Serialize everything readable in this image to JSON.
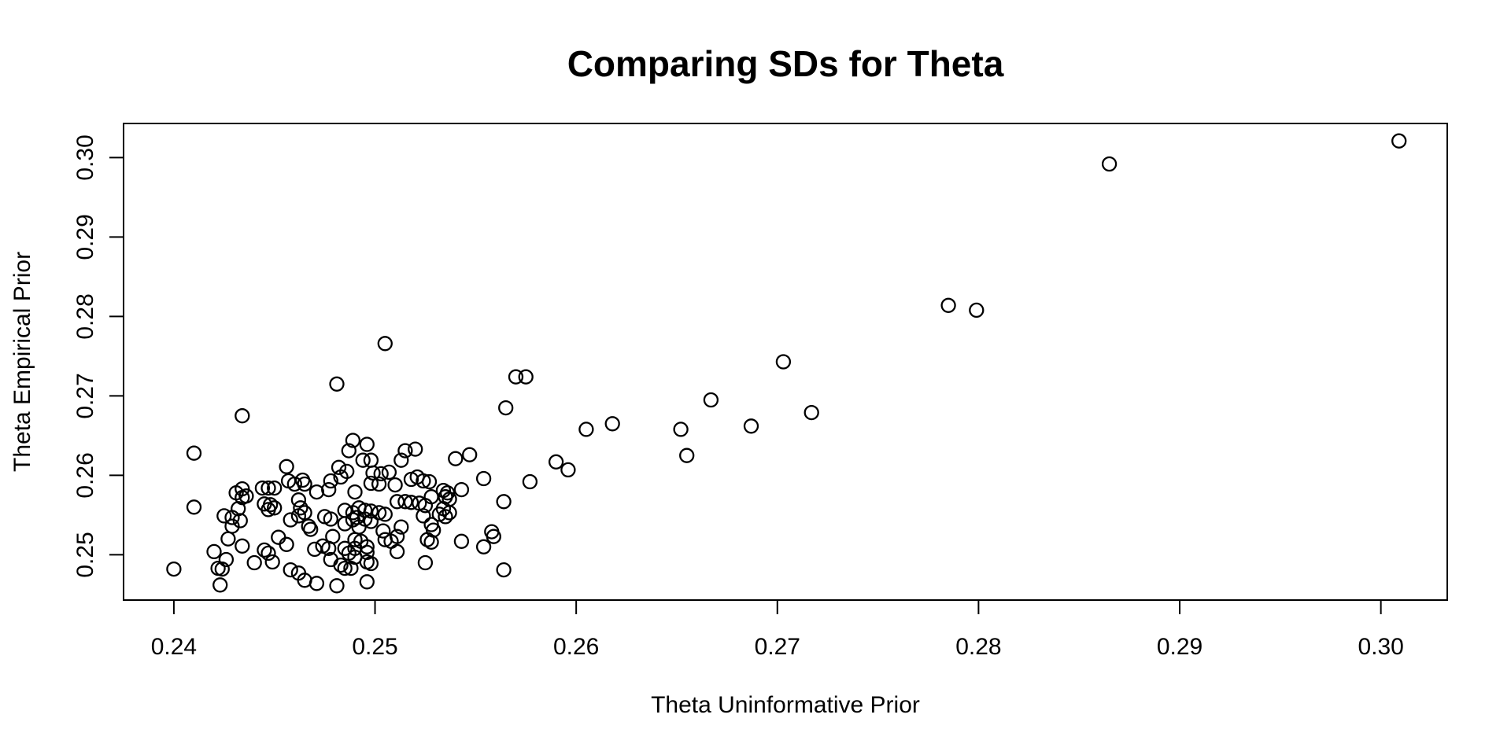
{
  "figure": {
    "background_color": "#ffffff",
    "foreground_color": "#000000"
  },
  "chart_data": {
    "type": "scatter",
    "title": "Comparing SDs for Theta",
    "xlabel": "Theta Uninformative Prior",
    "ylabel": "Theta Empirical Prior",
    "grid": false,
    "legend": "none",
    "xlim": [
      0.2375,
      0.3033
    ],
    "ylim": [
      0.2443,
      0.3043
    ],
    "x_ticks": {
      "values": [
        0.24,
        0.25,
        0.26,
        0.27,
        0.28,
        0.29,
        0.3
      ],
      "labels": [
        "0.24",
        "0.25",
        "0.26",
        "0.27",
        "0.28",
        "0.29",
        "0.30"
      ]
    },
    "y_ticks": {
      "values": [
        0.25,
        0.26,
        0.27,
        0.28,
        0.29,
        0.3
      ],
      "labels": [
        "0.25",
        "0.26",
        "0.27",
        "0.28",
        "0.29",
        "0.30"
      ]
    },
    "marker": {
      "shape": "open-circle",
      "color": "#000000",
      "radius_px": 8.5,
      "stroke_px": 2.3
    },
    "points": [
      [
        0.24,
        0.2482
      ],
      [
        0.241,
        0.2628
      ],
      [
        0.241,
        0.256
      ],
      [
        0.242,
        0.2504
      ],
      [
        0.2422,
        0.2483
      ],
      [
        0.2423,
        0.2462
      ],
      [
        0.2424,
        0.2482
      ],
      [
        0.2425,
        0.2549
      ],
      [
        0.2426,
        0.2494
      ],
      [
        0.2427,
        0.252
      ],
      [
        0.2429,
        0.2547
      ],
      [
        0.2429,
        0.2536
      ],
      [
        0.2431,
        0.2578
      ],
      [
        0.2432,
        0.2558
      ],
      [
        0.2433,
        0.2543
      ],
      [
        0.2434,
        0.2583
      ],
      [
        0.2434,
        0.2572
      ],
      [
        0.2434,
        0.2511
      ],
      [
        0.2436,
        0.2574
      ],
      [
        0.2434,
        0.2675
      ],
      [
        0.244,
        0.249
      ],
      [
        0.2444,
        0.2584
      ],
      [
        0.2447,
        0.2584
      ],
      [
        0.245,
        0.2584
      ],
      [
        0.2445,
        0.2564
      ],
      [
        0.2448,
        0.2563
      ],
      [
        0.2447,
        0.2557
      ],
      [
        0.245,
        0.2559
      ],
      [
        0.2445,
        0.2506
      ],
      [
        0.2447,
        0.2502
      ],
      [
        0.2449,
        0.2491
      ],
      [
        0.2452,
        0.2522
      ],
      [
        0.2456,
        0.2513
      ],
      [
        0.2456,
        0.2611
      ],
      [
        0.2457,
        0.2593
      ],
      [
        0.246,
        0.2589
      ],
      [
        0.2464,
        0.2594
      ],
      [
        0.2465,
        0.2589
      ],
      [
        0.2462,
        0.2569
      ],
      [
        0.2463,
        0.2559
      ],
      [
        0.2465,
        0.2553
      ],
      [
        0.2458,
        0.2544
      ],
      [
        0.2462,
        0.2549
      ],
      [
        0.2467,
        0.2536
      ],
      [
        0.2468,
        0.2532
      ],
      [
        0.247,
        0.2507
      ],
      [
        0.2471,
        0.2579
      ],
      [
        0.2471,
        0.2464
      ],
      [
        0.2474,
        0.2511
      ],
      [
        0.2475,
        0.2548
      ],
      [
        0.2477,
        0.2508
      ],
      [
        0.2478,
        0.2593
      ],
      [
        0.2477,
        0.2582
      ],
      [
        0.2478,
        0.2545
      ],
      [
        0.2479,
        0.2523
      ],
      [
        0.2478,
        0.2494
      ],
      [
        0.2458,
        0.2481
      ],
      [
        0.2462,
        0.2477
      ],
      [
        0.2465,
        0.2468
      ],
      [
        0.2481,
        0.2461
      ],
      [
        0.2481,
        0.2715
      ],
      [
        0.2482,
        0.261
      ],
      [
        0.2483,
        0.2487
      ],
      [
        0.2483,
        0.2598
      ],
      [
        0.2485,
        0.2483
      ],
      [
        0.2485,
        0.2508
      ],
      [
        0.2485,
        0.2556
      ],
      [
        0.2485,
        0.2539
      ],
      [
        0.2486,
        0.2605
      ],
      [
        0.2487,
        0.2631
      ],
      [
        0.2487,
        0.2502
      ],
      [
        0.2488,
        0.2483
      ],
      [
        0.2489,
        0.2644
      ],
      [
        0.2489,
        0.2553
      ],
      [
        0.2489,
        0.2544
      ],
      [
        0.249,
        0.2579
      ],
      [
        0.249,
        0.2519
      ],
      [
        0.249,
        0.2508
      ],
      [
        0.249,
        0.2497
      ],
      [
        0.2491,
        0.2547
      ],
      [
        0.2492,
        0.2559
      ],
      [
        0.2492,
        0.2535
      ],
      [
        0.2493,
        0.2517
      ],
      [
        0.2494,
        0.2619
      ],
      [
        0.2495,
        0.2556
      ],
      [
        0.2495,
        0.2545
      ],
      [
        0.2496,
        0.2639
      ],
      [
        0.2496,
        0.251
      ],
      [
        0.2496,
        0.2503
      ],
      [
        0.2496,
        0.2491
      ],
      [
        0.2496,
        0.2466
      ],
      [
        0.2498,
        0.2619
      ],
      [
        0.2498,
        0.2555
      ],
      [
        0.2498,
        0.2542
      ],
      [
        0.2498,
        0.2489
      ],
      [
        0.2499,
        0.2603
      ],
      [
        0.2502,
        0.2553
      ],
      [
        0.2502,
        0.2589
      ],
      [
        0.2498,
        0.259
      ],
      [
        0.2503,
        0.2602
      ],
      [
        0.2504,
        0.253
      ],
      [
        0.2505,
        0.2551
      ],
      [
        0.2505,
        0.2519
      ],
      [
        0.2505,
        0.2766
      ],
      [
        0.2507,
        0.2604
      ],
      [
        0.2508,
        0.2517
      ],
      [
        0.251,
        0.2588
      ],
      [
        0.2511,
        0.2567
      ],
      [
        0.2511,
        0.2523
      ],
      [
        0.2511,
        0.2504
      ],
      [
        0.2513,
        0.2535
      ],
      [
        0.2513,
        0.2619
      ],
      [
        0.2515,
        0.2567
      ],
      [
        0.2515,
        0.2631
      ],
      [
        0.2518,
        0.2566
      ],
      [
        0.252,
        0.2633
      ],
      [
        0.2518,
        0.2595
      ],
      [
        0.2521,
        0.2598
      ],
      [
        0.2524,
        0.2593
      ],
      [
        0.2527,
        0.2592
      ],
      [
        0.2522,
        0.2565
      ],
      [
        0.2524,
        0.2549
      ],
      [
        0.2525,
        0.2562
      ],
      [
        0.2525,
        0.249
      ],
      [
        0.2526,
        0.2519
      ],
      [
        0.2528,
        0.2516
      ],
      [
        0.2528,
        0.2573
      ],
      [
        0.2528,
        0.2538
      ],
      [
        0.2529,
        0.2531
      ],
      [
        0.2532,
        0.2551
      ],
      [
        0.2534,
        0.2581
      ],
      [
        0.2534,
        0.2558
      ],
      [
        0.2535,
        0.2573
      ],
      [
        0.2535,
        0.2548
      ],
      [
        0.2536,
        0.2578
      ],
      [
        0.2537,
        0.257
      ],
      [
        0.2537,
        0.2553
      ],
      [
        0.254,
        0.2621
      ],
      [
        0.2543,
        0.2582
      ],
      [
        0.2543,
        0.2517
      ],
      [
        0.2547,
        0.2626
      ],
      [
        0.2554,
        0.2596
      ],
      [
        0.2554,
        0.251
      ],
      [
        0.2558,
        0.2529
      ],
      [
        0.2559,
        0.2523
      ],
      [
        0.2565,
        0.2685
      ],
      [
        0.2564,
        0.2567
      ],
      [
        0.2564,
        0.2481
      ],
      [
        0.257,
        0.2724
      ],
      [
        0.2575,
        0.2724
      ],
      [
        0.2577,
        0.2592
      ],
      [
        0.259,
        0.2617
      ],
      [
        0.2596,
        0.2607
      ],
      [
        0.2605,
        0.2658
      ],
      [
        0.2618,
        0.2665
      ],
      [
        0.2652,
        0.2658
      ],
      [
        0.2655,
        0.2625
      ],
      [
        0.2667,
        0.2695
      ],
      [
        0.2687,
        0.2662
      ],
      [
        0.2703,
        0.2743
      ],
      [
        0.2717,
        0.2679
      ],
      [
        0.2785,
        0.2814
      ],
      [
        0.2799,
        0.2808
      ],
      [
        0.2865,
        0.2992
      ],
      [
        0.3009,
        0.3021
      ]
    ]
  }
}
